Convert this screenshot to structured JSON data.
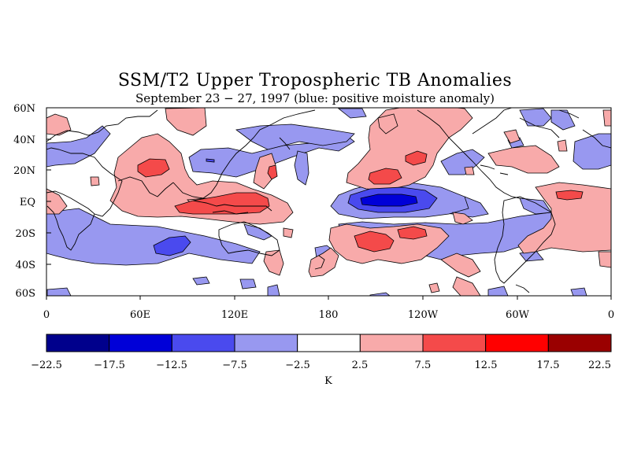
{
  "title": "SSM/T2 Upper Tropospheric TB Anomalies",
  "subtitle": "September 23 − 27, 1997 (blue: positive moisture anomaly)",
  "lat_labels": [
    "60N",
    "40N",
    "20N",
    "EQ",
    "20S",
    "40S",
    "60S"
  ],
  "lon_labels": [
    "0",
    "60E",
    "120E",
    "180",
    "120W",
    "60W",
    "0"
  ],
  "colorbar": {
    "unit": "K",
    "levels": [
      "−22.5",
      "−17.5",
      "−12.5",
      "−7.5",
      "−2.5",
      "2.5",
      "7.5",
      "12.5",
      "17.5",
      "22.5"
    ],
    "colors": [
      "#00008c",
      "#0000d8",
      "#4a4aee",
      "#9898f0",
      "#ffffff",
      "#f8aaaa",
      "#f44a4a",
      "#ff0000",
      "#9a0000"
    ]
  },
  "colors": {
    "blue_light": "#9898f0",
    "blue_mid": "#4a4aee",
    "blue_dark": "#0000d8",
    "red_light": "#f8aaaa",
    "red_mid": "#f44a4a"
  },
  "map": {
    "lon_range": [
      0,
      360
    ],
    "lat_range": [
      -60,
      60
    ]
  }
}
